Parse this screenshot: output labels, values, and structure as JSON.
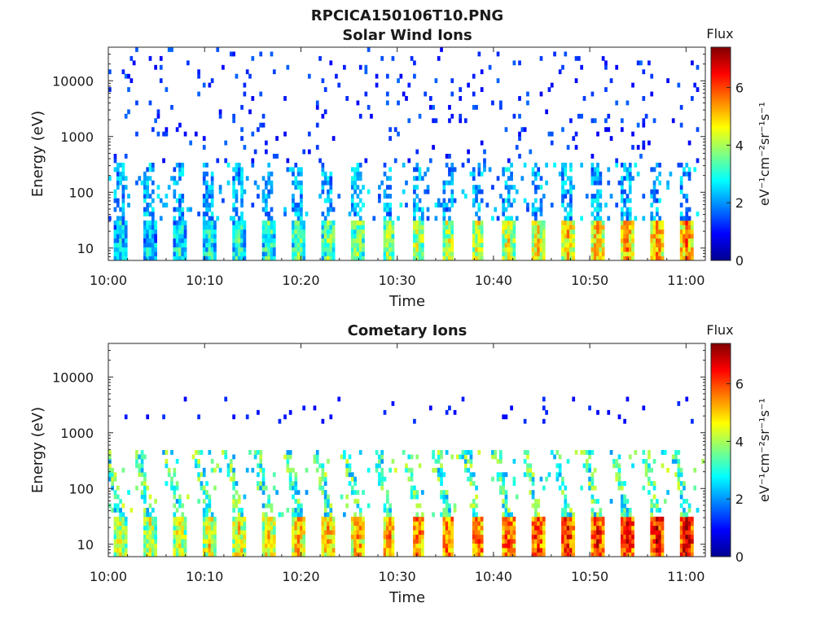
{
  "figure": {
    "title": "RPCICA150106T10.PNG"
  },
  "colors": {
    "background": "#ffffff",
    "axis": "#262626",
    "colormap": [
      "#00008f",
      "#0000ff",
      "#0080ff",
      "#00ffff",
      "#80ff80",
      "#ffff00",
      "#ff8000",
      "#ff0000",
      "#800000"
    ]
  },
  "chart_data": [
    {
      "type": "heatmap",
      "title": "Solar Wind Ions",
      "xlabel": "Time",
      "ylabel": "Energy (eV)",
      "x_range": [
        "10:00",
        "11:02"
      ],
      "x_ticks": [
        "10:00",
        "10:10",
        "10:20",
        "10:30",
        "10:40",
        "10:50",
        "11:00"
      ],
      "y_scale": "log",
      "y_range": [
        6,
        40000
      ],
      "y_ticks": [
        10,
        100,
        1000,
        10000
      ],
      "y_tick_labels": [
        "10",
        "100",
        "1000",
        "10000"
      ],
      "colorbar": {
        "label_top": "Flux",
        "label_side": "eV⁻¹cm⁻²sr⁻¹s⁻¹",
        "range": [
          0,
          7.4
        ],
        "ticks": [
          0,
          2,
          4,
          6
        ],
        "tick_labels": [
          "0",
          "2",
          "4",
          "6"
        ]
      },
      "grid": false,
      "features": [
        {
          "band": "low-energy",
          "energy_range": [
            6,
            30
          ],
          "flux_range": [
            2.5,
            6.5
          ],
          "pattern": "periodic columns every ~3.1 min"
        },
        {
          "band": "mid-energy",
          "energy_range": [
            60,
            300
          ],
          "flux_range": [
            1.5,
            3.0
          ],
          "pattern": "periodic scattered streaks"
        },
        {
          "band": "high-energy",
          "energy_range": [
            300,
            40000
          ],
          "flux_range": [
            0.8,
            1.6
          ],
          "pattern": "sparse speckles"
        }
      ]
    },
    {
      "type": "heatmap",
      "title": "Cometary Ions",
      "xlabel": "Time",
      "ylabel": "Energy (eV)",
      "x_range": [
        "10:00",
        "11:02"
      ],
      "x_ticks": [
        "10:00",
        "10:10",
        "10:20",
        "10:30",
        "10:40",
        "10:50",
        "11:00"
      ],
      "y_scale": "log",
      "y_range": [
        6,
        40000
      ],
      "y_ticks": [
        10,
        100,
        1000,
        10000
      ],
      "y_tick_labels": [
        "10",
        "100",
        "1000",
        "10000"
      ],
      "colorbar": {
        "label_top": "Flux",
        "label_side": "eV⁻¹cm⁻²sr⁻¹s⁻¹",
        "range": [
          0,
          7.4
        ],
        "ticks": [
          0,
          2,
          4,
          6
        ],
        "tick_labels": [
          "0",
          "2",
          "4",
          "6"
        ]
      },
      "grid": false,
      "features": [
        {
          "band": "low-energy",
          "energy_range": [
            6,
            30
          ],
          "flux_range": [
            4.0,
            7.2
          ],
          "pattern": "periodic columns every ~3.1 min"
        },
        {
          "band": "mid-energy",
          "energy_range": [
            30,
            400
          ],
          "flux_range": [
            2.0,
            4.5
          ],
          "pattern": "periodic diagonal streaks"
        },
        {
          "band": "high-energy",
          "energy_range": [
            1500,
            4000
          ],
          "flux_range": [
            0.8,
            1.3
          ],
          "pattern": "sparse dots"
        }
      ]
    }
  ]
}
